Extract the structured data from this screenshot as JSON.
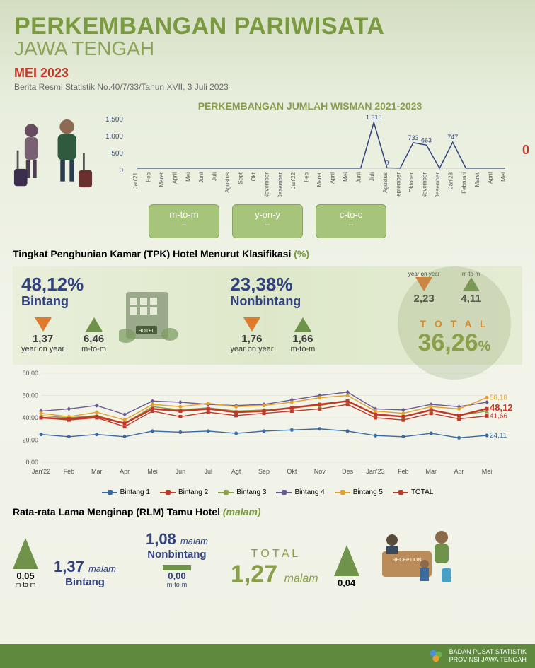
{
  "colors": {
    "title": "#7a9a3f",
    "title_sub": "#8aa556",
    "period": "#c13a2b",
    "subheading": "#8a9c4e",
    "navy": "#31427e",
    "green": "#5f8a3e",
    "green_fill": "#6f934a",
    "orange": "#e07b2e",
    "red": "#c0392b",
    "gray_text": "#6a6a6a",
    "total_orange": "#d78a2a",
    "purple": "#6b5b95",
    "blue": "#3b6aa0",
    "olive": "#8aa048"
  },
  "header": {
    "title": "PERKEMBANGAN PARIWISATA",
    "subtitle": "JAWA TENGAH",
    "period": "MEI 2023",
    "reference": "Berita Resmi Statistik No.40/7/33/Tahun XVII, 3 Juli 2023"
  },
  "wisman": {
    "title": "PERKEMBANGAN JUMLAH WISMAN 2021-2023",
    "y_ticks": [
      "1.500",
      "1.000",
      "500",
      "0"
    ],
    "y_step": 500,
    "ymax": 1500,
    "x_labels": [
      "Jan'21",
      "Feb",
      "Maret",
      "April",
      "Mei",
      "Juni",
      "Juli",
      "Agustus",
      "Sept",
      "Okt",
      "November",
      "Desember",
      "Jan'22",
      "Feb",
      "Maret",
      "April",
      "Mei",
      "Juni",
      "Juli",
      "Agustus",
      "September",
      "Oktober",
      "November",
      "Desember",
      "Jan'23",
      "Februari",
      "Maret",
      "April",
      "Mei"
    ],
    "values": [
      0,
      0,
      0,
      0,
      0,
      0,
      0,
      0,
      0,
      0,
      0,
      0,
      0,
      0,
      0,
      0,
      0,
      0,
      1315,
      9,
      0,
      733,
      663,
      0,
      747,
      0,
      0,
      0,
      0
    ],
    "callouts": [
      {
        "i": 18,
        "text": "1.315"
      },
      {
        "i": 19,
        "text": "9"
      },
      {
        "i": 21,
        "text": "733"
      },
      {
        "i": 22,
        "text": "663"
      },
      {
        "i": 24,
        "text": "747"
      }
    ],
    "zero_label": "0",
    "buttons": [
      {
        "label": "m-to-m",
        "sub": "--"
      },
      {
        "label": "y-on-y",
        "sub": "--"
      },
      {
        "label": "c-to-c",
        "sub": "--"
      }
    ]
  },
  "tpk": {
    "title_prefix": "Tingkat Penghunian Kamar (TPK) Hotel Menurut Klasifikasi",
    "title_suffix": "(%)",
    "bintang": {
      "value": "48,12%",
      "label": "Bintang",
      "yoy": {
        "value": "1,37",
        "dir": "down",
        "note": "year on year",
        "color": "#e07b2e"
      },
      "mtom": {
        "value": "6,46",
        "dir": "up",
        "note": "m-to-m",
        "color": "#6f934a"
      }
    },
    "nonbintang": {
      "value": "23,38%",
      "label": "Nonbintang",
      "yoy": {
        "value": "1,76",
        "dir": "down",
        "note": "year on year",
        "color": "#e07b2e"
      },
      "mtom": {
        "value": "1,66",
        "dir": "up",
        "note": "m-to-m",
        "color": "#6f934a"
      }
    },
    "total": {
      "label": "T O T A L",
      "value": "36,26",
      "pct": "%",
      "yoy": {
        "value": "2,23",
        "dir": "down",
        "note": "year on year",
        "color": "#e07b2e"
      },
      "mtom": {
        "value": "4,11",
        "dir": "up",
        "note": "m-to-m",
        "color": "#6f934a"
      }
    },
    "hotel_label": "HOTEL"
  },
  "linechart": {
    "ylim": [
      0,
      80
    ],
    "ytick_step": 20,
    "y_ticks": [
      "0,00",
      "20,00",
      "40,00",
      "60,00",
      "80,00"
    ],
    "x_labels": [
      "Jan'22",
      "Feb",
      "Mar",
      "Apr",
      "Mei",
      "Jun",
      "Jul",
      "Agt",
      "Sep",
      "Okt",
      "Nov",
      "Des",
      "Jan'23",
      "Feb",
      "Mar",
      "Apr",
      "Mei"
    ],
    "series": [
      {
        "name": "Bintang 1",
        "color": "#3b6aa0",
        "marker": "circle",
        "values": [
          25,
          23,
          25,
          23,
          28,
          27,
          28,
          26,
          28,
          29,
          30,
          28,
          24,
          23,
          26,
          22,
          24.11
        ]
      },
      {
        "name": "Bintang 2",
        "color": "#c0392b",
        "marker": "square",
        "values": [
          40,
          38,
          40,
          32,
          46,
          41,
          45,
          42,
          44,
          46,
          48,
          52,
          40,
          38,
          44,
          39,
          41.66
        ]
      },
      {
        "name": "Bintang 3",
        "color": "#8aa048",
        "marker": "triangle",
        "values": [
          42,
          40,
          42,
          35,
          50,
          47,
          49,
          46,
          47,
          49,
          51,
          55,
          43,
          41,
          47,
          42,
          46
        ]
      },
      {
        "name": "Bintang 4",
        "color": "#6b5b95",
        "marker": "diamond",
        "values": [
          46,
          48,
          51,
          43,
          55,
          54,
          52,
          51,
          52,
          56,
          60,
          63,
          48,
          47,
          52,
          50,
          54
        ]
      },
      {
        "name": "Bintang 5",
        "color": "#e3a12c",
        "marker": "circle",
        "values": [
          44,
          41,
          45,
          38,
          52,
          50,
          53,
          50,
          51,
          54,
          58,
          60,
          46,
          44,
          50,
          48,
          58.18
        ]
      },
      {
        "name": "TOTAL",
        "color": "#c0392b",
        "marker": "square",
        "values": [
          40,
          39,
          41,
          35,
          48,
          46,
          48,
          45,
          46,
          49,
          52,
          55,
          43,
          41,
          47,
          42,
          48.12
        ],
        "thick": true
      }
    ],
    "end_labels": [
      {
        "text": "58,18",
        "color": "#e3a12c",
        "y": 58.18
      },
      {
        "text": "48,12",
        "color": "#c0392b",
        "y": 48.12,
        "bold": true
      },
      {
        "text": "41,66",
        "color": "#c0392b",
        "y": 41.66
      },
      {
        "text": "24,11",
        "color": "#3b6aa0",
        "y": 24.11
      }
    ]
  },
  "rlm": {
    "title_prefix": "Rata-rata Lama Menginap (RLM) Tamu Hotel",
    "title_suffix": "(malam)",
    "unit": "malam",
    "bintang": {
      "value": "1,37",
      "label": "Bintang",
      "mtom": "0,05",
      "mtom_note": "m-to-m",
      "dir": "up"
    },
    "nonbintang": {
      "value": "1,08",
      "label": "Nonbintang",
      "mtom": "0,00",
      "mtom_note": "m-to-m",
      "dir": "flat"
    },
    "total": {
      "label": "T O T A L",
      "value": "1,27",
      "mtom": "0,04",
      "dir": "up"
    }
  },
  "footer": {
    "line1": "BADAN PUSAT STATISTIK",
    "line2": "PROVINSI JAWA TENGAH"
  }
}
